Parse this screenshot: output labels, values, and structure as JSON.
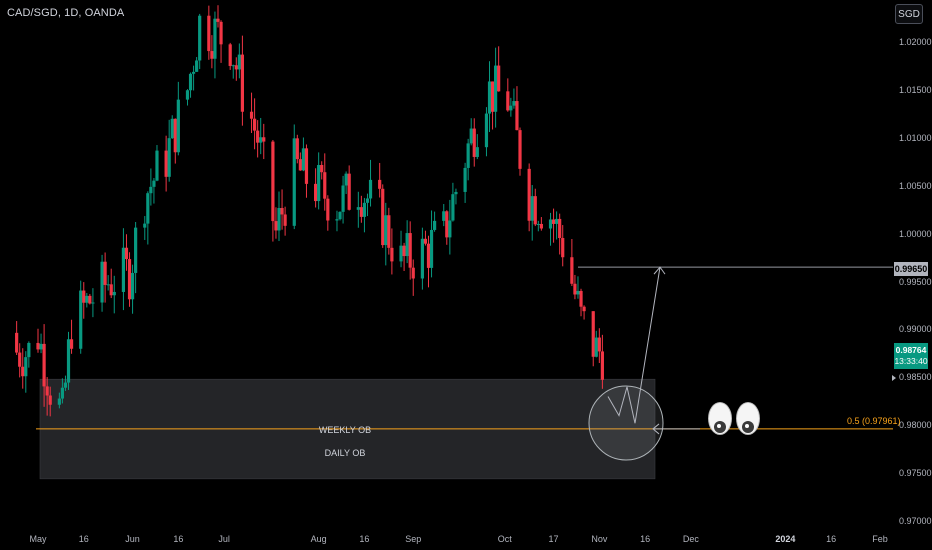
{
  "header": {
    "title": "CAD/SGD, 1D, OANDA",
    "currency_button": "SGD"
  },
  "price_axis": {
    "ticks": [
      "1.02000",
      "1.01500",
      "1.01000",
      "1.00500",
      "1.00000",
      "0.99500",
      "0.99000",
      "0.98500",
      "0.98000",
      "0.97500",
      "0.97000"
    ],
    "target_tag": "0.99650",
    "last_price": "0.98764",
    "countdown": "13:33:40"
  },
  "time_axis": {
    "ticks": [
      "May",
      "16",
      "Jun",
      "16",
      "Jul",
      "Aug",
      "16",
      "Sep",
      "Oct",
      "17",
      "Nov",
      "16",
      "Dec",
      "2024",
      "16",
      "Feb"
    ],
    "bold": [
      "2024"
    ]
  },
  "annotations": {
    "weekly_ob": "WEEKLY OB",
    "daily_ob": "DAILY OB",
    "fib_label": "0.5 (0.97961)"
  },
  "colors": {
    "up": "#089981",
    "down": "#f23645",
    "fib": "#f7a21b",
    "zone": "#2a2b2f",
    "background": "#000000"
  },
  "icons": [
    "eyes-emoji-icon"
  ],
  "chart_data": {
    "type": "candlestick",
    "title": "CAD/SGD, 1D, OANDA",
    "symbol": "CAD/SGD",
    "interval": "1D",
    "source": "OANDA",
    "ylim": [
      0.9695,
      1.0245
    ],
    "xlim": [
      "2023-05-01",
      "2024-02-01"
    ],
    "y_scale": "linear",
    "close_path_approx": [
      {
        "x": "2023-05-01",
        "close": 0.9895
      },
      {
        "x": "2023-05-05",
        "close": 0.984
      },
      {
        "x": "2023-05-09",
        "close": 0.981
      },
      {
        "x": "2023-05-12",
        "close": 0.9905
      },
      {
        "x": "2023-05-18",
        "close": 0.993
      },
      {
        "x": "2023-05-24",
        "close": 0.995
      },
      {
        "x": "2023-05-31",
        "close": 0.996
      },
      {
        "x": "2023-06-05",
        "close": 1.004
      },
      {
        "x": "2023-06-12",
        "close": 1.008
      },
      {
        "x": "2023-06-19",
        "close": 1.015
      },
      {
        "x": "2023-06-23",
        "close": 1.022
      },
      {
        "x": "2023-06-28",
        "close": 1.021
      },
      {
        "x": "2023-07-03",
        "close": 1.02
      },
      {
        "x": "2023-07-07",
        "close": 1.015
      },
      {
        "x": "2023-07-12",
        "close": 1.01
      },
      {
        "x": "2023-07-18",
        "close": 1.0
      },
      {
        "x": "2023-07-24",
        "close": 1.007
      },
      {
        "x": "2023-07-31",
        "close": 1.005
      },
      {
        "x": "2023-08-07",
        "close": 1.003
      },
      {
        "x": "2023-08-14",
        "close": 1.005
      },
      {
        "x": "2023-08-21",
        "close": 1.002
      },
      {
        "x": "2023-08-28",
        "close": 0.997
      },
      {
        "x": "2023-09-04",
        "close": 0.998
      },
      {
        "x": "2023-09-11",
        "close": 1.0
      },
      {
        "x": "2023-09-18",
        "close": 1.008
      },
      {
        "x": "2023-09-25",
        "close": 1.015
      },
      {
        "x": "2023-10-02",
        "close": 1.014
      },
      {
        "x": "2023-10-09",
        "close": 1.004
      },
      {
        "x": "2023-10-16",
        "close": 1.002
      },
      {
        "x": "2023-10-20",
        "close": 0.999
      },
      {
        "x": "2023-10-26",
        "close": 0.991
      },
      {
        "x": "2023-10-31",
        "close": 0.9878
      },
      {
        "x": "2023-11-02",
        "close": 0.98764
      }
    ],
    "zones": [
      {
        "label": "WEEKLY OB",
        "y_top": 0.9848,
        "y_bottom": 0.97961
      },
      {
        "label": "DAILY OB",
        "y_top": 0.97961,
        "y_bottom": 0.9744
      }
    ],
    "horizontal_lines": [
      {
        "label": "0.5 (0.97961)",
        "y": 0.97961,
        "color": "#f7a21b"
      },
      {
        "label": "0.99650",
        "y": 0.9965,
        "color": "#9598a1"
      }
    ],
    "projection": {
      "points": [
        0.983,
        0.981,
        0.984,
        0.9802,
        0.9965
      ]
    },
    "last_price": 0.98764,
    "legend": "none"
  }
}
